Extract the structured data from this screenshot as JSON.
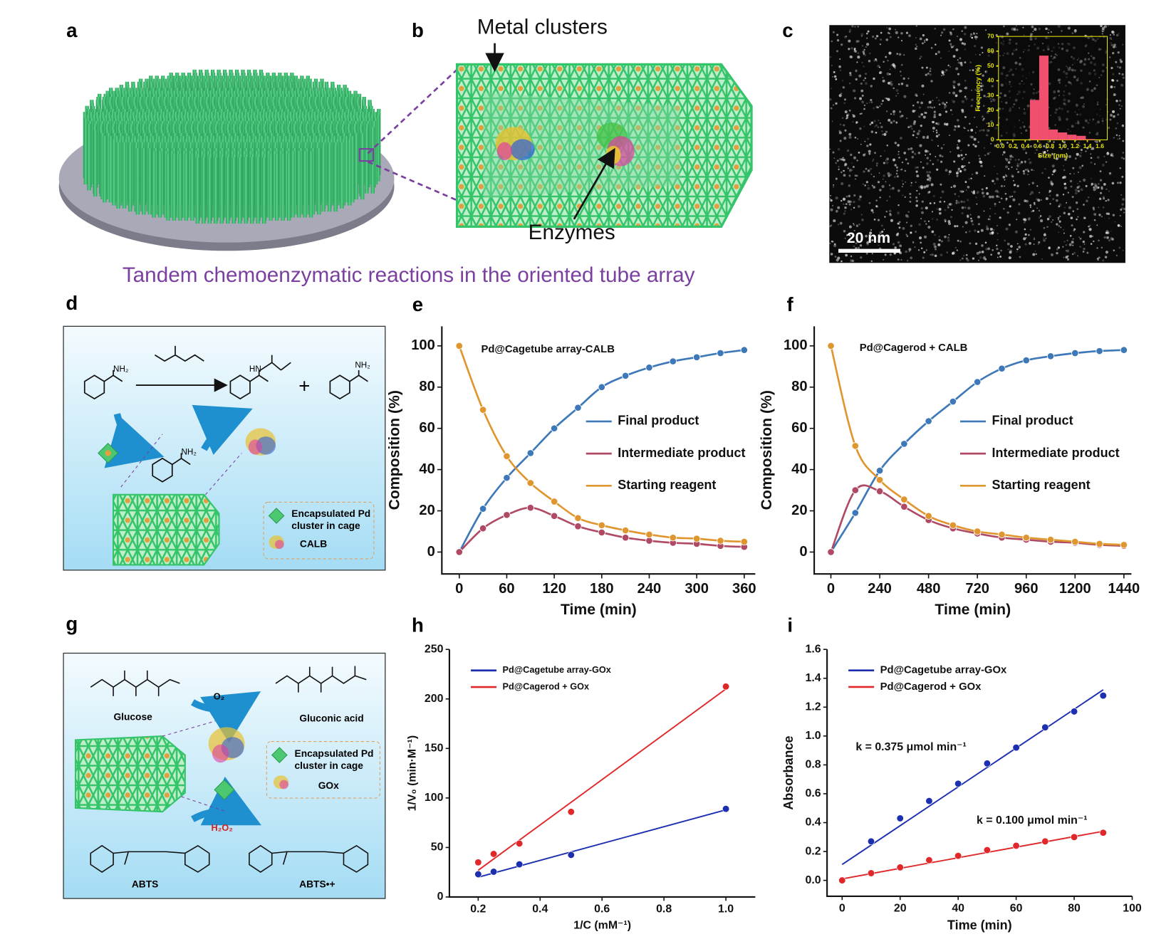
{
  "labels": [
    "a",
    "b",
    "c",
    "d",
    "e",
    "f",
    "g",
    "h",
    "i"
  ],
  "caption": "Tandem chemoenzymatic reactions in the oriented tube array",
  "panel_b": {
    "top_label": "Metal clusters",
    "bottom_label": "Enzymes"
  },
  "panel_c": {
    "scale_bar": "20 nm"
  },
  "panel_d": {
    "amine_labels": [
      "NH₂",
      "NH₂",
      "HN",
      "NH₂"
    ],
    "plus": "+",
    "legend": [
      "Encapsulated Pd",
      "cluster in cage"
    ],
    "enzyme": "CALB"
  },
  "panel_g": {
    "substrate": "Glucose",
    "product": "Gluconic acid",
    "oxidant": "O₂",
    "peroxide": "H₂O₂",
    "legend": [
      "Encapsulated Pd",
      "cluster in cage"
    ],
    "enzyme": "GOx",
    "dye": "ABTS",
    "dye_radical": "ABTS•+"
  },
  "chart_data": [
    {
      "type": "histogram",
      "x_label": "Size (nm)",
      "y_label": "Frequency (%)",
      "color": "#f0506e",
      "bins": [
        0.475,
        0.625,
        0.775,
        0.925,
        1.075,
        1.225,
        1.375,
        1.525
      ],
      "values": [
        27,
        57,
        7,
        5,
        3.5,
        2.7,
        0.5
      ],
      "xlim": [
        -0.03,
        1.72
      ],
      "ylim": [
        0,
        70
      ],
      "xticks": [
        {
          "value": 0,
          "label": "0.0"
        },
        0.2,
        0.4,
        0.6,
        0.8,
        {
          "value": 1,
          "label": "1.0"
        },
        1.2,
        1.4,
        1.6
      ],
      "yticks": [
        0,
        10,
        20,
        30,
        40,
        50,
        60,
        70
      ]
    },
    {
      "type": "line",
      "annotation": "Pd@Cagetube array-CALB",
      "x_label": "Time (min)",
      "y_label": "Composition (%)",
      "legend": "center right",
      "x": [
        0,
        30,
        60,
        90,
        120,
        150,
        180,
        210,
        240,
        270,
        300,
        330,
        360
      ],
      "series": [
        {
          "name": "Final product",
          "color": "#3d78b9",
          "values": [
            0,
            21,
            36,
            48,
            60,
            70,
            80,
            85.5,
            89.5,
            92.5,
            94.5,
            96.5,
            98
          ]
        },
        {
          "name": "Intermediate product",
          "color": "#b04a64",
          "values": [
            0,
            11.5,
            18,
            21.5,
            17.5,
            12.5,
            9.5,
            7,
            5.5,
            4.5,
            4,
            3,
            2.5
          ]
        },
        {
          "name": "Starting reagent",
          "color": "#e0962e",
          "values": [
            100,
            69,
            46.5,
            33.5,
            24.5,
            16.5,
            13,
            10.5,
            8.5,
            7,
            6.5,
            5.5,
            5
          ]
        }
      ],
      "xlim": [
        -22,
        374
      ],
      "ylim": [
        -10.6,
        109.5
      ],
      "xticks": [
        0,
        60,
        120,
        180,
        240,
        300,
        360
      ],
      "yticks": [
        0,
        20,
        40,
        60,
        80,
        100
      ]
    },
    {
      "type": "line",
      "annotation": "Pd@Cagerod + CALB",
      "x_label": "Time (min)",
      "y_label": "Composition (%)",
      "legend": "center right",
      "x": [
        0,
        120,
        240,
        360,
        480,
        600,
        720,
        840,
        960,
        1080,
        1200,
        1320,
        1440
      ],
      "series": [
        {
          "name": "Final product",
          "color": "#3d78b9",
          "values": [
            0,
            19,
            39.5,
            52.5,
            63.5,
            73,
            82.5,
            89,
            93,
            95,
            96.5,
            97.5,
            98
          ]
        },
        {
          "name": "Intermediate product",
          "color": "#b04a64",
          "values": [
            0,
            30,
            29.5,
            22,
            15.5,
            11.5,
            9,
            7,
            6,
            5,
            4.5,
            3.5,
            3
          ]
        },
        {
          "name": "Starting reagent",
          "color": "#e0962e",
          "values": [
            100,
            51.5,
            35,
            25.5,
            17.5,
            13,
            10,
            8.5,
            7,
            6,
            5,
            4,
            3.5
          ]
        }
      ],
      "xlim": [
        -82,
        1477
      ],
      "ylim": [
        -10.6,
        109.5
      ],
      "xticks": [
        0,
        240,
        480,
        720,
        960,
        1200,
        1440
      ],
      "yticks": [
        0,
        20,
        40,
        60,
        80,
        100
      ]
    },
    {
      "type": "scatter",
      "x_label": "1/C (mM⁻¹)",
      "y_label": "1/V₀ (min·M⁻¹)",
      "legend": "upper left",
      "series": [
        {
          "name": "Pd@Cagetube array-GOx",
          "color": "#1c2fb0",
          "x": [
            0.2,
            0.25,
            0.333,
            0.5,
            1.0
          ],
          "values": [
            23,
            25.5,
            33,
            42.5,
            89
          ],
          "fit": {
            "x": [
              0.2,
              1.0
            ],
            "values": [
              20,
              88
            ]
          }
        },
        {
          "name": "Pd@Cagerod + GOx",
          "color": "#e0282a",
          "x": [
            0.2,
            0.25,
            0.333,
            0.5,
            1.0
          ],
          "values": [
            35,
            43.5,
            54,
            86,
            212.5
          ],
          "fit": {
            "x": [
              0.2,
              1.0
            ],
            "values": [
              27,
              210
            ]
          }
        }
      ],
      "xlim": [
        0.107,
        1.095
      ],
      "ylim": [
        0,
        250
      ],
      "xticks": [
        0.2,
        0.4,
        0.6,
        0.8,
        {
          "value": 1,
          "label": "1.0"
        }
      ],
      "yticks": [
        0,
        50,
        100,
        150,
        200,
        250
      ]
    },
    {
      "type": "scatter",
      "x_label": "Time (min)",
      "y_label": "Absorbance",
      "legend": "upper left",
      "annotations": [
        "k = 0.375 μmol min⁻¹",
        "k = 0.100 μmol min⁻¹"
      ],
      "series": [
        {
          "name": "Pd@Cagetube array-GOx",
          "color": "#1c2fb0",
          "x": [
            10,
            20,
            30,
            40,
            50,
            60,
            70,
            80,
            90
          ],
          "values": [
            0.27,
            0.43,
            0.55,
            0.67,
            0.81,
            0.92,
            1.06,
            1.17,
            1.28
          ],
          "fit": {
            "x": [
              0,
              90
            ],
            "values": [
              0.11,
              1.32
            ]
          }
        },
        {
          "name": "Pd@Cagerod + GOx",
          "color": "#e0282a",
          "x": [
            0,
            10,
            20,
            30,
            40,
            50,
            60,
            70,
            80,
            90
          ],
          "values": [
            0.0,
            0.05,
            0.09,
            0.14,
            0.17,
            0.21,
            0.24,
            0.27,
            0.3,
            0.33
          ],
          "fit": {
            "x": [
              0,
              90
            ],
            "values": [
              0.01,
              0.34
            ]
          }
        }
      ],
      "xlim": [
        -5.2,
        100
      ],
      "ylim": [
        -0.11,
        1.6
      ],
      "xticks": [
        0,
        20,
        40,
        60,
        80,
        100
      ],
      "yticks": [
        {
          "value": 0,
          "label": "0.0"
        },
        0.2,
        0.4,
        0.6,
        0.8,
        {
          "value": 1,
          "label": "1.0"
        },
        1.2,
        1.4,
        1.6
      ]
    }
  ]
}
